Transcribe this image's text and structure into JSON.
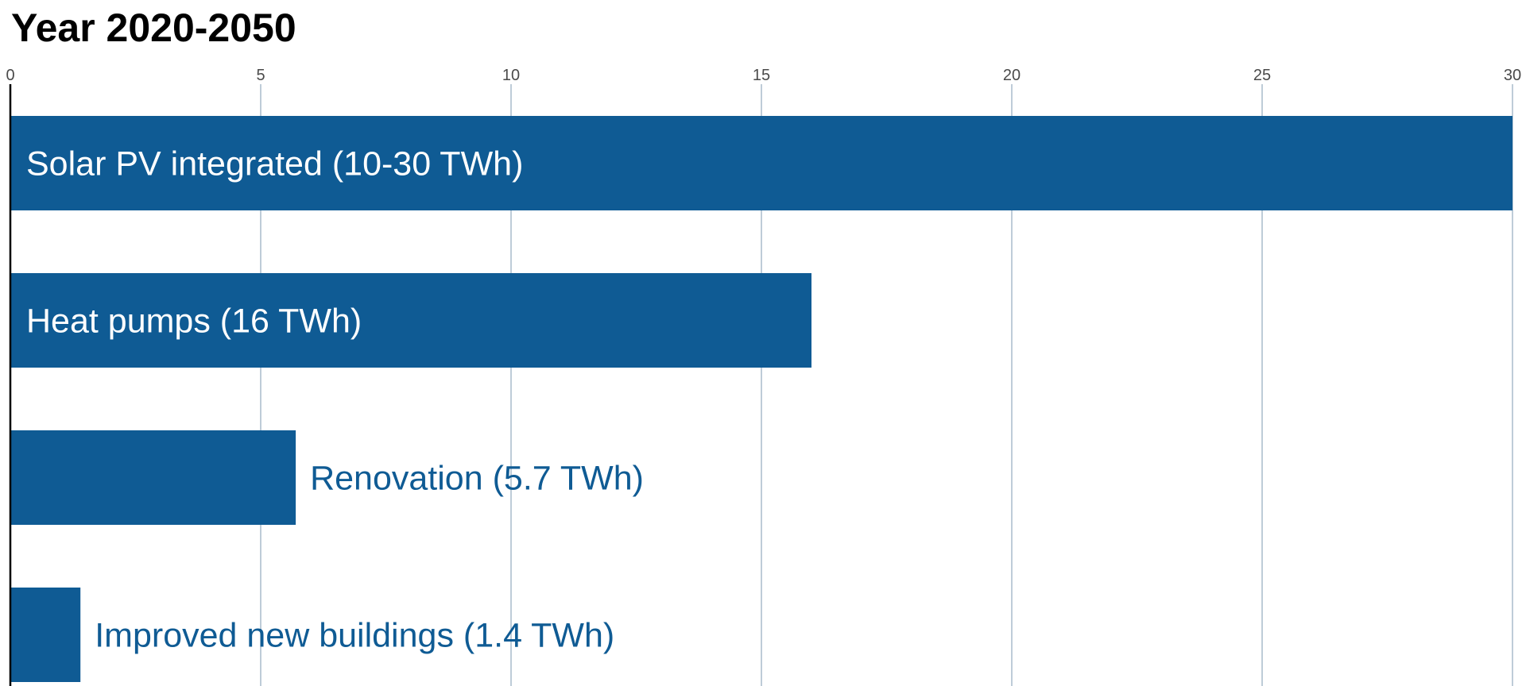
{
  "chart_data": {
    "type": "bar",
    "orientation": "horizontal",
    "title": "Year 2020-2050",
    "xlabel": "",
    "ylabel": "",
    "xlim": [
      0,
      30
    ],
    "ticks": [
      0,
      5,
      10,
      15,
      20,
      25,
      30
    ],
    "tick_labels": [
      "0",
      "5",
      "10",
      "15",
      "20",
      "25",
      "30"
    ],
    "grid": "vertical",
    "legend": "none",
    "bar_color": "#0f5b94",
    "grid_color": "#a9bccc",
    "label_inside_color": "#ffffff",
    "label_outside_color": "#0f5b94",
    "categories": [
      "Solar PV integrated (10-30 TWh)",
      "Heat pumps (16 TWh)",
      "Renovation (5.7 TWh)",
      "Improved new buildings (1.4 TWh)"
    ],
    "values": [
      30,
      16,
      5.7,
      1.4
    ],
    "label_position": [
      "inside",
      "inside",
      "outside",
      "outside"
    ]
  }
}
